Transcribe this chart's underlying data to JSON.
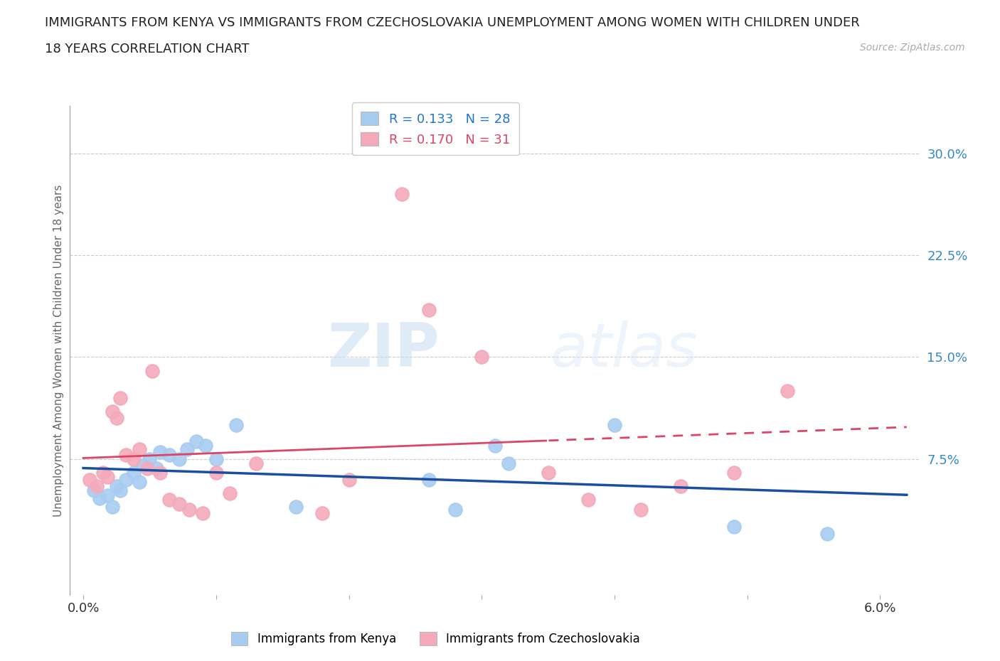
{
  "title_line1": "IMMIGRANTS FROM KENYA VS IMMIGRANTS FROM CZECHOSLOVAKIA UNEMPLOYMENT AMONG WOMEN WITH CHILDREN UNDER",
  "title_line2": "18 YEARS CORRELATION CHART",
  "source": "Source: ZipAtlas.com",
  "ylabel": "Unemployment Among Women with Children Under 18 years",
  "xlabel_kenya": "Immigrants from Kenya",
  "xlabel_czechoslovakia": "Immigrants from Czechoslovakia",
  "watermark_zip": "ZIP",
  "watermark_atlas": "atlas",
  "xlim": [
    -0.001,
    0.063
  ],
  "ylim": [
    -0.025,
    0.335
  ],
  "xtick_positions": [
    0.0,
    0.01,
    0.02,
    0.03,
    0.04,
    0.05,
    0.06
  ],
  "xtick_labels": [
    "0.0%",
    "",
    "",
    "",
    "",
    "",
    "6.0%"
  ],
  "ytick_right": [
    0.075,
    0.15,
    0.225,
    0.3
  ],
  "ytick_right_labels": [
    "7.5%",
    "15.0%",
    "22.5%",
    "30.0%"
  ],
  "R_kenya": 0.133,
  "N_kenya": 28,
  "R_czechoslovakia": 0.17,
  "N_czechoslovakia": 31,
  "color_kenya": "#A8CCF0",
  "color_czechoslovakia": "#F4AABB",
  "color_kenya_line": "#1A4FA0",
  "color_czechoslovakia_line": "#DD4466",
  "color_r_kenya": "#2277CC",
  "color_r_czechoslovakia": "#DD4466",
  "color_ytick": "#3388CC",
  "kenya_x": [
    0.0008,
    0.0012,
    0.0018,
    0.0022,
    0.0025,
    0.0028,
    0.0032,
    0.0038,
    0.0042,
    0.0045,
    0.005,
    0.0055,
    0.0058,
    0.0065,
    0.0072,
    0.0078,
    0.0085,
    0.0092,
    0.01,
    0.0115,
    0.016,
    0.026,
    0.028,
    0.031,
    0.032,
    0.04,
    0.049,
    0.056
  ],
  "kenya_y": [
    0.052,
    0.046,
    0.048,
    0.04,
    0.055,
    0.052,
    0.06,
    0.065,
    0.058,
    0.07,
    0.075,
    0.068,
    0.08,
    0.078,
    0.075,
    0.082,
    0.088,
    0.085,
    0.075,
    0.1,
    0.04,
    0.06,
    0.038,
    0.085,
    0.072,
    0.1,
    0.025,
    0.02
  ],
  "czechoslovakia_x": [
    0.0005,
    0.001,
    0.0015,
    0.0018,
    0.0022,
    0.0025,
    0.0028,
    0.0032,
    0.0038,
    0.0042,
    0.0048,
    0.0052,
    0.0058,
    0.0065,
    0.0072,
    0.008,
    0.009,
    0.01,
    0.011,
    0.013,
    0.018,
    0.02,
    0.024,
    0.026,
    0.03,
    0.035,
    0.038,
    0.042,
    0.045,
    0.049,
    0.053
  ],
  "czechoslovakia_y": [
    0.06,
    0.055,
    0.065,
    0.062,
    0.11,
    0.105,
    0.12,
    0.078,
    0.075,
    0.082,
    0.068,
    0.14,
    0.065,
    0.045,
    0.042,
    0.038,
    0.035,
    0.065,
    0.05,
    0.072,
    0.035,
    0.06,
    0.27,
    0.185,
    0.15,
    0.065,
    0.045,
    0.038,
    0.055,
    0.065,
    0.125
  ],
  "background_color": "#FFFFFF",
  "grid_color": "#CCCCCC",
  "trend_split_x": 0.035
}
